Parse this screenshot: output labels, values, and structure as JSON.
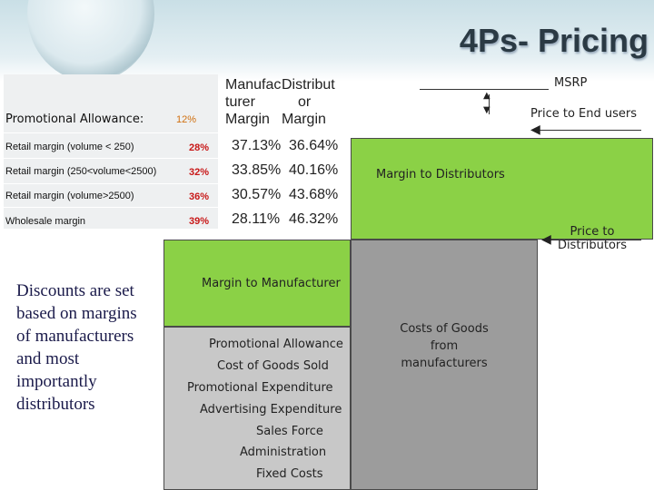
{
  "slide": {
    "title": "4Ps- Pricing"
  },
  "table": {
    "promo_label": "Promotional Allowance:",
    "promo_value": "12%",
    "header_col1": [
      "Manufac",
      "turer",
      "Margin"
    ],
    "header_col2": [
      "Distribut",
      "or",
      "Margin"
    ],
    "rows": [
      {
        "label": "Retail margin (volume < 250)",
        "pct": "28%",
        "mfr": "37.13%",
        "dist": "36.64%"
      },
      {
        "label": "Retail margin (250<volume<2500)",
        "pct": "32%",
        "mfr": "33.85%",
        "dist": "40.16%"
      },
      {
        "label": "Retail margin (volume>2500)",
        "pct": "36%",
        "mfr": "30.57%",
        "dist": "43.68%"
      },
      {
        "label": "Wholesale margin",
        "pct": "39%",
        "mfr": "28.11%",
        "dist": "46.32%"
      }
    ]
  },
  "note": "Discounts are set based on margins of manufacturers and most importantly distributors",
  "diagram": {
    "msrp": "MSRP",
    "price_to_end_users": "Price to End users",
    "margin_to_distributors": "Margin to Distributors",
    "price_to_distributors_1": "Price to",
    "price_to_distributors_2": "Distributors",
    "margin_to_manufacturer": "Margin to Manufacturer",
    "cost_items": [
      "Promotional Allowance",
      "Cost of Goods Sold",
      "Promotional Expenditure",
      "Advertising Expenditure",
      "Sales Force",
      "Administration",
      "Fixed Costs"
    ],
    "costs_from_1": "Costs of Goods",
    "costs_from_2": "from",
    "costs_from_3": "manufacturers"
  },
  "colors": {
    "green": "#8bd146",
    "gray_light": "#c8c8c8",
    "gray_dark": "#9c9c9c",
    "pct_red": "#c81818",
    "promo_orange": "#d07010"
  }
}
